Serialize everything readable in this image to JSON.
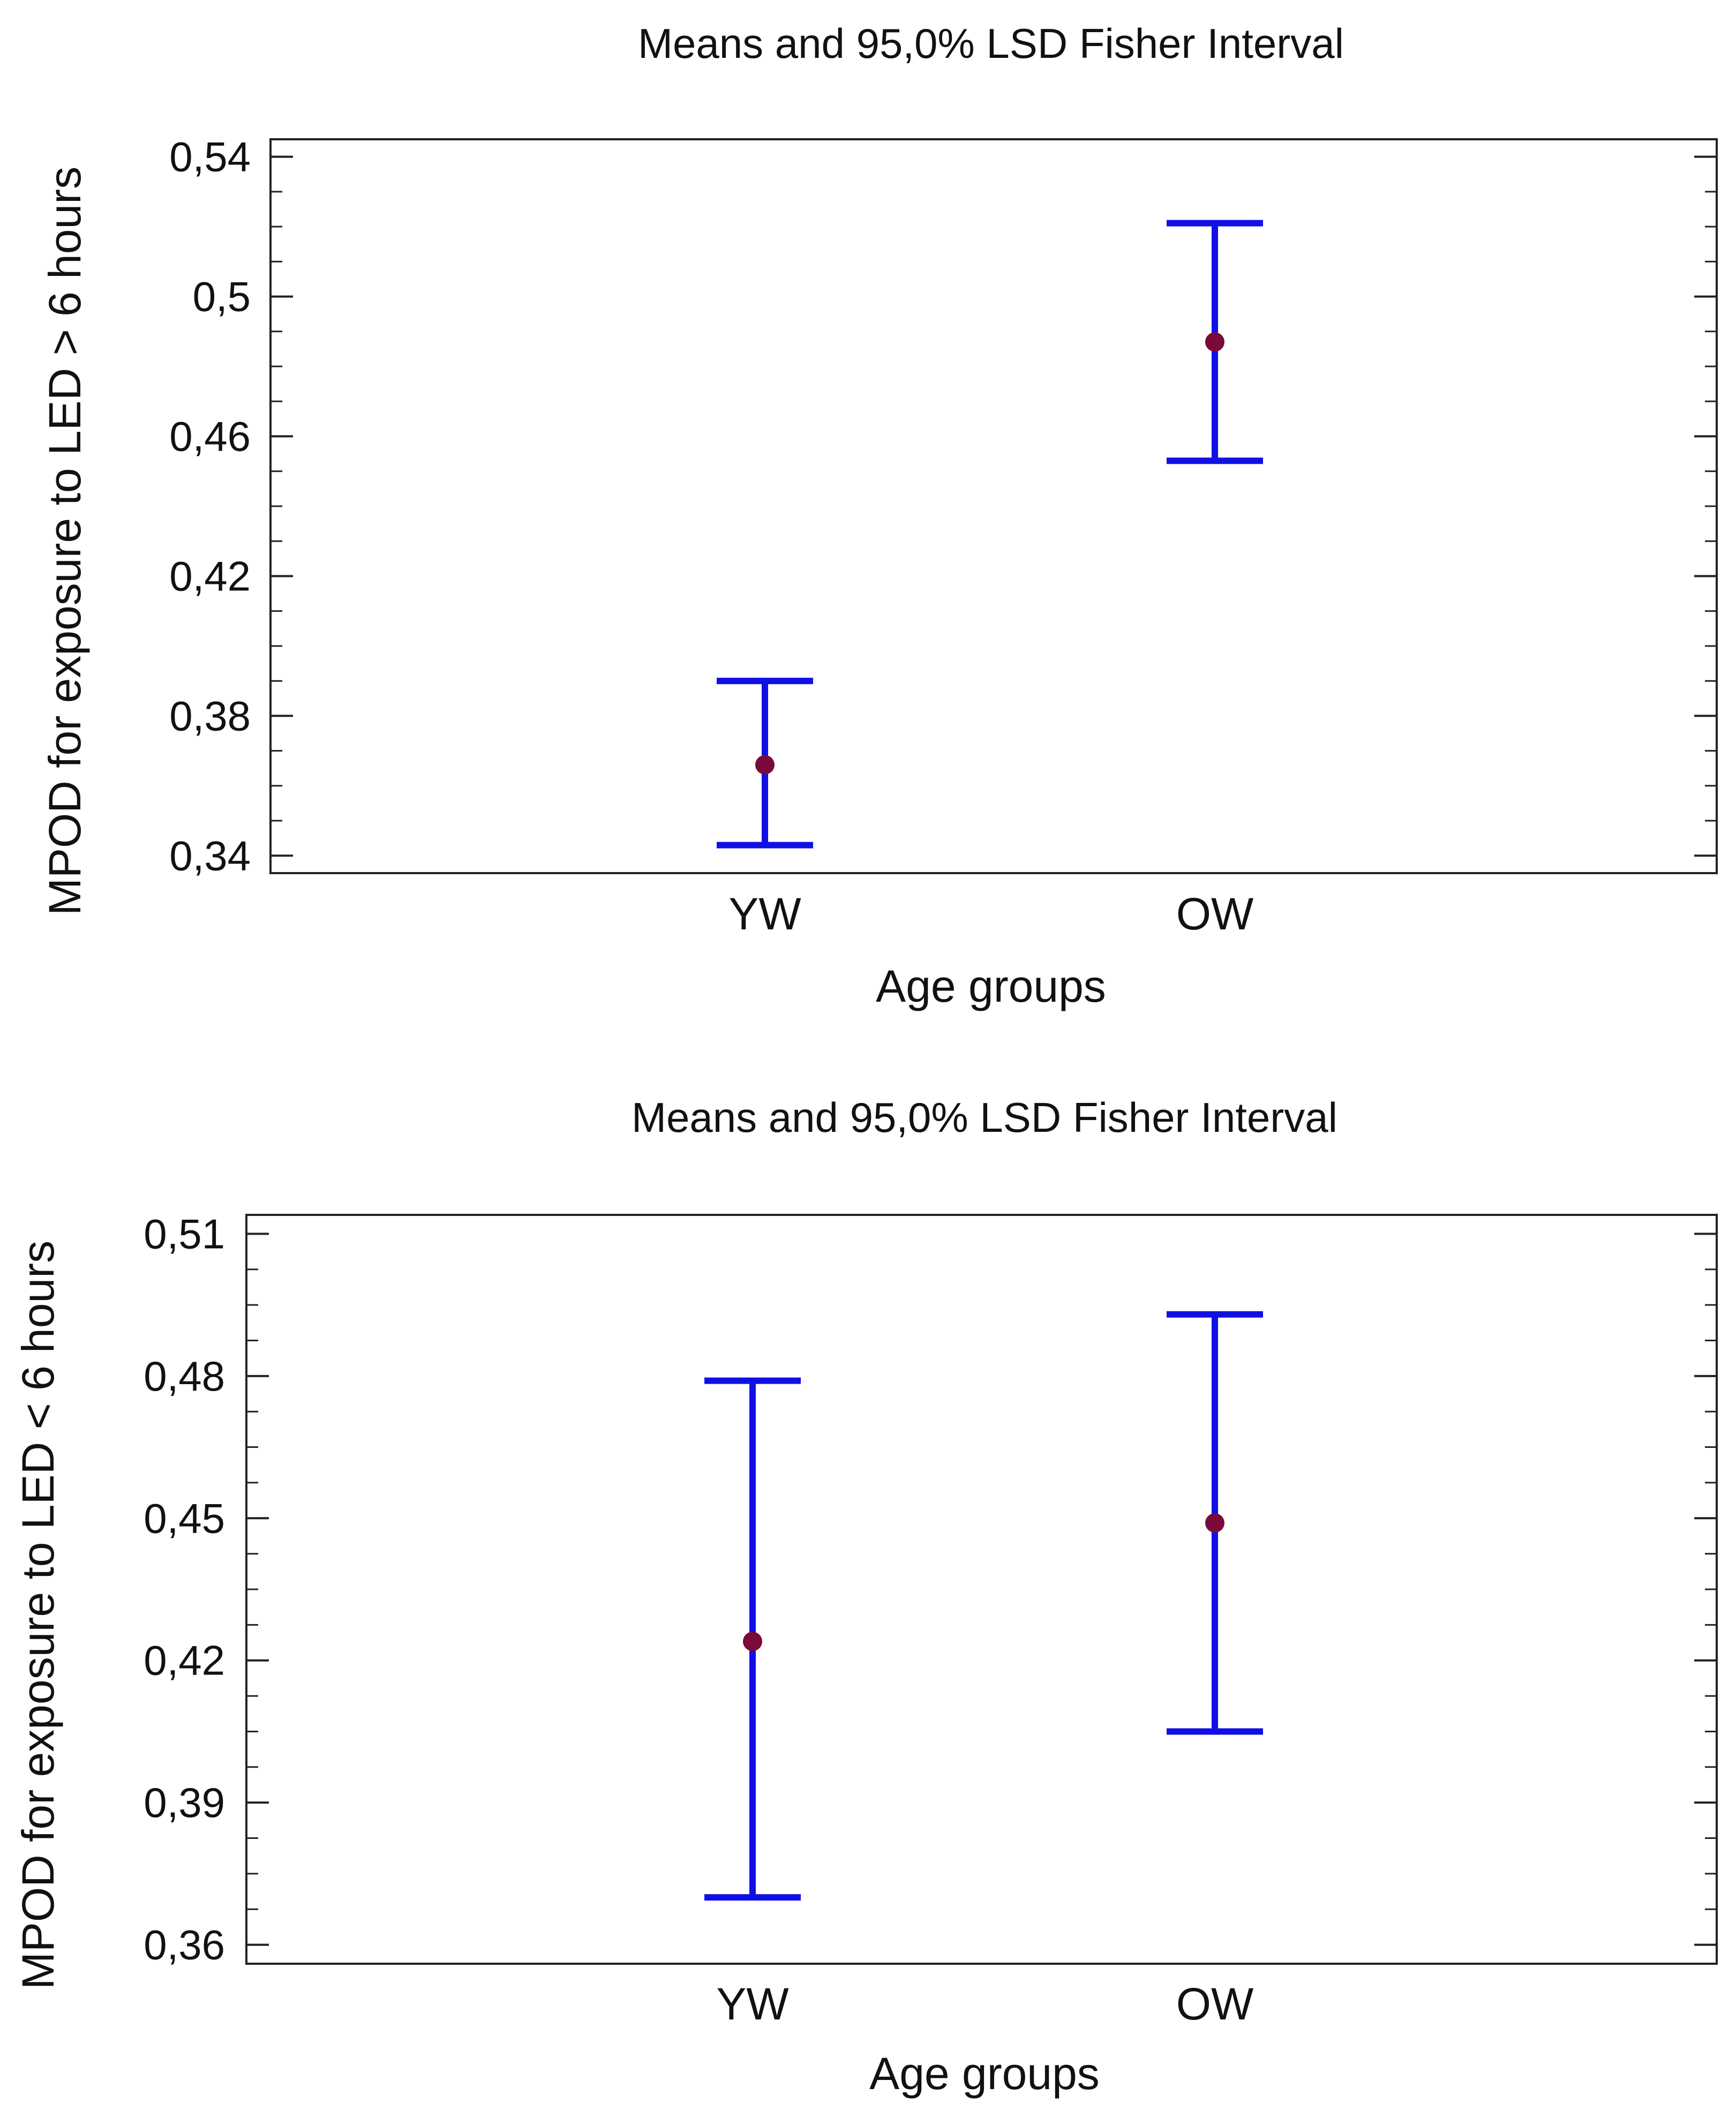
{
  "colors": {
    "interval": "#1010e6",
    "mean_marker": "#7a0a3a",
    "frame": "#222222",
    "background": "#ffffff"
  },
  "chart_data": [
    {
      "type": "scatter",
      "title": "Means and 95,0% LSD Fisher Interval",
      "xlabel": "Age groups",
      "ylabel": "MPOD for exposure to LED > 6  hours",
      "categories": [
        "YW",
        "OW"
      ],
      "ylim": [
        0.335,
        0.545
      ],
      "y_ticks": [
        0.34,
        0.38,
        0.42,
        0.46,
        0.5,
        0.54
      ],
      "y_tick_labels": [
        "0,34",
        "0,38",
        "0,42",
        "0,46",
        "0,5",
        "0,54"
      ],
      "minor_tick_step": 0.01,
      "series": [
        {
          "means": [
            0.366,
            0.487
          ],
          "lower": [
            0.343,
            0.453
          ],
          "upper": [
            0.39,
            0.521
          ]
        }
      ],
      "grid": false,
      "legend": "none"
    },
    {
      "type": "scatter",
      "title": "Means and 95,0% LSD Fisher Interval",
      "xlabel": "Age groups",
      "ylabel": "MPOD for exposure to LED < 6  hours",
      "categories": [
        "YW",
        "OW"
      ],
      "ylim": [
        0.356,
        0.514
      ],
      "y_ticks": [
        0.36,
        0.39,
        0.42,
        0.45,
        0.48,
        0.51
      ],
      "y_tick_labels": [
        "0,36",
        "0,39",
        "0,42",
        "0,45",
        "0,48",
        "0,51"
      ],
      "minor_tick_step": 0.0075,
      "series": [
        {
          "means": [
            0.424,
            0.449
          ],
          "lower": [
            0.37,
            0.405
          ],
          "upper": [
            0.479,
            0.493
          ]
        }
      ],
      "grid": false,
      "legend": "none"
    }
  ]
}
